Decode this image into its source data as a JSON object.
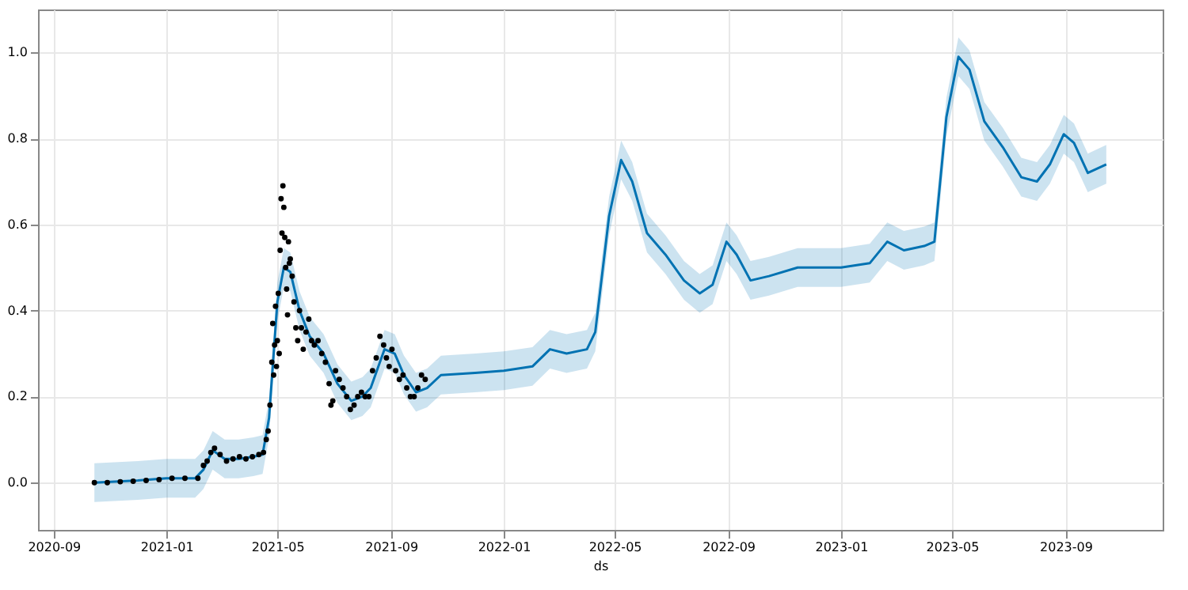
{
  "chart_data": {
    "type": "line",
    "xlabel": "ds",
    "xlim": [
      "2020-08-15",
      "2023-12-15"
    ],
    "ylim": [
      -0.11,
      1.1
    ],
    "xticks": [
      "2020-09",
      "2021-01",
      "2021-05",
      "2021-09",
      "2022-01",
      "2022-05",
      "2022-09",
      "2023-01",
      "2023-05",
      "2023-09"
    ],
    "yticks": [
      {
        "value": 0,
        "label": "0.0"
      },
      {
        "value": 0.2,
        "label": "0.2"
      },
      {
        "value": 0.4,
        "label": "0.4"
      },
      {
        "value": 0.6,
        "label": "0.6"
      },
      {
        "value": 0.8,
        "label": "0.8"
      },
      {
        "value": 1,
        "label": "1.0"
      }
    ],
    "grid": true,
    "series": [
      {
        "color": "#0072b2",
        "x": [
          "2020-10-15",
          "2020-12-01",
          "2021-01-01",
          "2021-02-01",
          "2021-02-10",
          "2021-02-20",
          "2021-03-05",
          "2021-03-20",
          "2021-04-05",
          "2021-04-15",
          "2021-04-22",
          "2021-05-01",
          "2021-05-08",
          "2021-05-15",
          "2021-05-25",
          "2021-06-05",
          "2021-06-20",
          "2021-07-05",
          "2021-07-20",
          "2021-08-01",
          "2021-08-10",
          "2021-08-25",
          "2021-09-05",
          "2021-09-15",
          "2021-09-28",
          "2021-10-10",
          "2021-10-25",
          "2021-12-01",
          "2022-01-01",
          "2022-02-01",
          "2022-02-20",
          "2022-03-10",
          "2022-04-01",
          "2022-04-10",
          "2022-04-25",
          "2022-05-08",
          "2022-05-20",
          "2022-06-05",
          "2022-06-25",
          "2022-07-15",
          "2022-08-01",
          "2022-08-15",
          "2022-08-30",
          "2022-09-10",
          "2022-09-25",
          "2022-10-15",
          "2022-11-15",
          "2023-01-01",
          "2023-02-01",
          "2023-02-20",
          "2023-03-10",
          "2023-04-01",
          "2023-04-12",
          "2023-04-25",
          "2023-05-08",
          "2023-05-20",
          "2023-06-05",
          "2023-06-25",
          "2023-07-15",
          "2023-08-01",
          "2023-08-15",
          "2023-08-30",
          "2023-09-10",
          "2023-09-25",
          "2023-10-15"
        ],
        "values": [
          0.0,
          0.005,
          0.01,
          0.01,
          0.03,
          0.075,
          0.055,
          0.055,
          0.06,
          0.065,
          0.15,
          0.42,
          0.5,
          0.49,
          0.4,
          0.34,
          0.3,
          0.23,
          0.19,
          0.2,
          0.22,
          0.31,
          0.3,
          0.25,
          0.21,
          0.22,
          0.25,
          0.255,
          0.26,
          0.27,
          0.31,
          0.3,
          0.31,
          0.35,
          0.62,
          0.75,
          0.7,
          0.58,
          0.53,
          0.47,
          0.44,
          0.46,
          0.56,
          0.53,
          0.47,
          0.48,
          0.5,
          0.5,
          0.51,
          0.56,
          0.54,
          0.55,
          0.56,
          0.85,
          0.99,
          0.96,
          0.84,
          0.78,
          0.71,
          0.7,
          0.74,
          0.81,
          0.79,
          0.72,
          0.74
        ],
        "lower": [
          -0.045,
          -0.04,
          -0.035,
          -0.035,
          -0.015,
          0.03,
          0.01,
          0.01,
          0.015,
          0.02,
          0.105,
          0.375,
          0.455,
          0.445,
          0.355,
          0.295,
          0.255,
          0.185,
          0.145,
          0.155,
          0.175,
          0.265,
          0.255,
          0.205,
          0.165,
          0.175,
          0.205,
          0.21,
          0.215,
          0.225,
          0.265,
          0.255,
          0.265,
          0.305,
          0.575,
          0.705,
          0.655,
          0.535,
          0.485,
          0.425,
          0.395,
          0.415,
          0.515,
          0.485,
          0.425,
          0.435,
          0.455,
          0.455,
          0.465,
          0.515,
          0.495,
          0.505,
          0.515,
          0.805,
          0.945,
          0.915,
          0.795,
          0.735,
          0.665,
          0.655,
          0.695,
          0.765,
          0.745,
          0.675,
          0.695
        ],
        "upper": [
          0.045,
          0.05,
          0.055,
          0.055,
          0.075,
          0.12,
          0.1,
          0.1,
          0.105,
          0.11,
          0.195,
          0.465,
          0.545,
          0.535,
          0.445,
          0.385,
          0.345,
          0.275,
          0.235,
          0.245,
          0.265,
          0.355,
          0.345,
          0.295,
          0.255,
          0.265,
          0.295,
          0.3,
          0.305,
          0.315,
          0.355,
          0.345,
          0.355,
          0.395,
          0.665,
          0.795,
          0.745,
          0.625,
          0.575,
          0.515,
          0.485,
          0.505,
          0.605,
          0.575,
          0.515,
          0.525,
          0.545,
          0.545,
          0.555,
          0.605,
          0.585,
          0.595,
          0.605,
          0.895,
          1.035,
          1.005,
          0.885,
          0.825,
          0.755,
          0.745,
          0.785,
          0.855,
          0.835,
          0.765,
          0.785
        ]
      },
      {
        "type": "scatter",
        "color": "#000000",
        "x": [
          "2020-10-15",
          "2020-10-29",
          "2020-11-12",
          "2020-11-26",
          "2020-12-10",
          "2020-12-24",
          "2021-01-07",
          "2021-01-21",
          "2021-02-04",
          "2021-02-10",
          "2021-02-14",
          "2021-02-18",
          "2021-02-22",
          "2021-02-28",
          "2021-03-07",
          "2021-03-14",
          "2021-03-21",
          "2021-03-28",
          "2021-04-04",
          "2021-04-11",
          "2021-04-16",
          "2021-04-19",
          "2021-04-21",
          "2021-04-23",
          "2021-04-25",
          "2021-04-26",
          "2021-04-27",
          "2021-04-28",
          "2021-04-29",
          "2021-04-30",
          "2021-05-01",
          "2021-05-02",
          "2021-05-03",
          "2021-05-04",
          "2021-05-05",
          "2021-05-06",
          "2021-05-07",
          "2021-05-08",
          "2021-05-09",
          "2021-05-10",
          "2021-05-11",
          "2021-05-12",
          "2021-05-13",
          "2021-05-14",
          "2021-05-15",
          "2021-05-17",
          "2021-05-19",
          "2021-05-21",
          "2021-05-23",
          "2021-05-25",
          "2021-05-27",
          "2021-05-29",
          "2021-06-01",
          "2021-06-04",
          "2021-06-07",
          "2021-06-10",
          "2021-06-14",
          "2021-06-18",
          "2021-06-22",
          "2021-06-26",
          "2021-06-28",
          "2021-06-30",
          "2021-07-03",
          "2021-07-07",
          "2021-07-11",
          "2021-07-15",
          "2021-07-19",
          "2021-07-23",
          "2021-07-27",
          "2021-07-31",
          "2021-08-04",
          "2021-08-08",
          "2021-08-12",
          "2021-08-16",
          "2021-08-20",
          "2021-08-24",
          "2021-08-27",
          "2021-08-30",
          "2021-09-02",
          "2021-09-06",
          "2021-09-10",
          "2021-09-14",
          "2021-09-18",
          "2021-09-22",
          "2021-09-26",
          "2021-09-30",
          "2021-10-04",
          "2021-10-08"
        ],
        "values": [
          0.0,
          0.0,
          0.002,
          0.003,
          0.005,
          0.007,
          0.01,
          0.01,
          0.01,
          0.04,
          0.05,
          0.07,
          0.08,
          0.065,
          0.05,
          0.055,
          0.06,
          0.055,
          0.06,
          0.065,
          0.07,
          0.1,
          0.12,
          0.18,
          0.28,
          0.37,
          0.25,
          0.32,
          0.41,
          0.27,
          0.33,
          0.44,
          0.3,
          0.54,
          0.66,
          0.58,
          0.69,
          0.64,
          0.57,
          0.5,
          0.45,
          0.39,
          0.56,
          0.51,
          0.52,
          0.48,
          0.42,
          0.36,
          0.33,
          0.4,
          0.36,
          0.31,
          0.35,
          0.38,
          0.33,
          0.32,
          0.33,
          0.3,
          0.28,
          0.23,
          0.18,
          0.19,
          0.26,
          0.24,
          0.22,
          0.2,
          0.17,
          0.18,
          0.2,
          0.21,
          0.2,
          0.2,
          0.26,
          0.29,
          0.34,
          0.32,
          0.29,
          0.27,
          0.31,
          0.26,
          0.24,
          0.25,
          0.22,
          0.2,
          0.2,
          0.22,
          0.25,
          0.24
        ]
      }
    ]
  }
}
